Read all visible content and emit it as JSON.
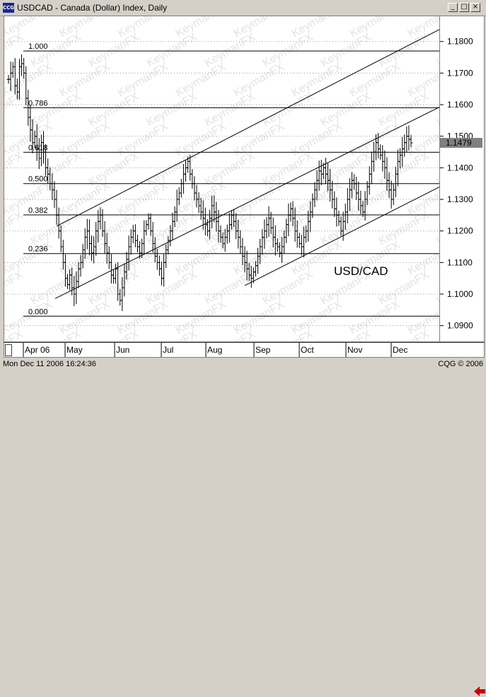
{
  "window": {
    "icon_label": "CCG",
    "title": "USDCAD - Canada (Dollar) Index, Daily",
    "buttons": [
      "_",
      "□",
      "×"
    ]
  },
  "status": {
    "left": "Mon Dec 11 2006 16:24:36",
    "right": "CQG © 2006"
  },
  "colors": {
    "accent": "#cc0000",
    "window": "#d4d0c8",
    "plot_bg": "#ffffff",
    "price_box": "#808080"
  },
  "icons": {
    "back": "red-left-arrow-icon"
  },
  "chart_data": {
    "type": "ohlc",
    "title": "USD/CAD",
    "ylim": [
      1.085,
      1.188
    ],
    "y_ticks": [
      1.09,
      1.1,
      1.11,
      1.12,
      1.13,
      1.14,
      1.15,
      1.16,
      1.17,
      1.18
    ],
    "y_tick_labels": [
      "1.0900",
      "1.1000",
      "1.1100",
      "1.1200",
      "1.1300",
      "1.1400",
      "1.1500",
      "1.1600",
      "1.1700",
      "1.1800"
    ],
    "current_price": "1.1479",
    "x_months": [
      "Apr 06",
      "May",
      "Jun",
      "Jul",
      "Aug",
      "Sep",
      "Oct",
      "Nov",
      "Dec"
    ],
    "fibonacci": {
      "high": 1.177,
      "low": 1.093,
      "levels": [
        {
          "label": "1.000",
          "ratio": 1.0
        },
        {
          "label": "0.786",
          "ratio": 0.786
        },
        {
          "label": "0.618",
          "ratio": 0.618
        },
        {
          "label": "0.500",
          "ratio": 0.5
        },
        {
          "label": "0.382",
          "ratio": 0.382
        },
        {
          "label": "0.236",
          "ratio": 0.236
        },
        {
          "label": "0.000",
          "ratio": 0.0
        }
      ]
    },
    "watermark": "KeymanFX",
    "closes": [
      1.168,
      1.17,
      1.172,
      1.166,
      1.164,
      1.172,
      1.173,
      1.17,
      1.162,
      1.156,
      1.152,
      1.148,
      1.15,
      1.146,
      1.143,
      1.148,
      1.145,
      1.14,
      1.138,
      1.135,
      1.133,
      1.13,
      1.125,
      1.12,
      1.115,
      1.11,
      1.105,
      1.103,
      1.106,
      1.102,
      1.1,
      1.104,
      1.108,
      1.11,
      1.114,
      1.118,
      1.12,
      1.116,
      1.113,
      1.115,
      1.12,
      1.123,
      1.125,
      1.12,
      1.116,
      1.113,
      1.11,
      1.106,
      1.105,
      1.108,
      1.1,
      1.098,
      1.102,
      1.107,
      1.111,
      1.115,
      1.118,
      1.12,
      1.117,
      1.115,
      1.113,
      1.116,
      1.12,
      1.122,
      1.124,
      1.12,
      1.116,
      1.112,
      1.11,
      1.108,
      1.105,
      1.11,
      1.114,
      1.117,
      1.12,
      1.123,
      1.126,
      1.13,
      1.132,
      1.135,
      1.138,
      1.14,
      1.142,
      1.138,
      1.135,
      1.132,
      1.13,
      1.128,
      1.126,
      1.124,
      1.122,
      1.12,
      1.124,
      1.128,
      1.126,
      1.123,
      1.12,
      1.118,
      1.116,
      1.118,
      1.12,
      1.122,
      1.125,
      1.123,
      1.12,
      1.118,
      1.115,
      1.112,
      1.11,
      1.108,
      1.106,
      1.105,
      1.107,
      1.109,
      1.112,
      1.115,
      1.118,
      1.12,
      1.122,
      1.124,
      1.121,
      1.118,
      1.116,
      1.115,
      1.113,
      1.115,
      1.118,
      1.122,
      1.125,
      1.127,
      1.124,
      1.12,
      1.118,
      1.116,
      1.115,
      1.118,
      1.12,
      1.123,
      1.126,
      1.13,
      1.133,
      1.136,
      1.139,
      1.138,
      1.14,
      1.138,
      1.136,
      1.133,
      1.13,
      1.127,
      1.125,
      1.123,
      1.12,
      1.123,
      1.126,
      1.13,
      1.133,
      1.136,
      1.135,
      1.132,
      1.13,
      1.128,
      1.126,
      1.13,
      1.134,
      1.138,
      1.142,
      1.145,
      1.148,
      1.146,
      1.144,
      1.142,
      1.14,
      1.136,
      1.133,
      1.13,
      1.133,
      1.138,
      1.142,
      1.144,
      1.146,
      1.148,
      1.15,
      1.149,
      1.1479
    ]
  }
}
